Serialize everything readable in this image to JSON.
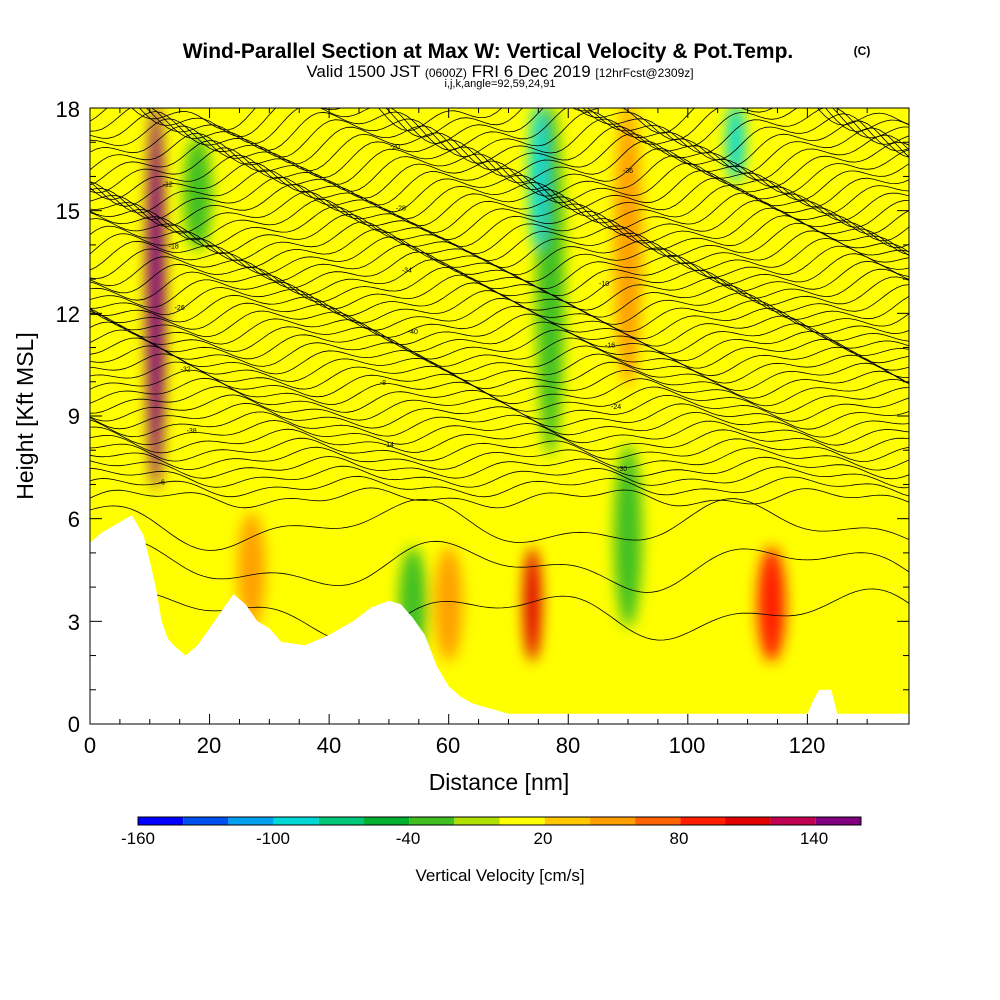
{
  "chart_data": {
    "type": "heatmap",
    "title": "Wind-Parallel Section at Max W: Vertical Velocity & Pot.Temp.",
    "title_mark": "(C)",
    "subtitle": {
      "prefix": "Valid 1500 JST",
      "zulu": "(0600Z)",
      "date": "FRI 6 Dec 2019",
      "forecast": "[12hrFcst@2309z]"
    },
    "indices_line": "i,j,k,angle=92,59,24,91",
    "xlabel": "Distance [nm]",
    "ylabel": "Height [Kft MSL]",
    "xlim": [
      0,
      137
    ],
    "ylim": [
      0,
      18
    ],
    "x_ticks": [
      "0",
      "20",
      "40",
      "60",
      "80",
      "100",
      "120"
    ],
    "y_ticks": [
      "0",
      "3",
      "6",
      "9",
      "12",
      "15",
      "18"
    ],
    "colorbar": {
      "label": "Vertical Velocity [cm/s]",
      "range": [
        -160,
        160
      ],
      "step": 20,
      "tick_labels": [
        "-160",
        "-100",
        "-40",
        "20",
        "80",
        "140"
      ],
      "colors": [
        "#0000ff",
        "#0050f0",
        "#00a0f0",
        "#00d8d8",
        "#00c87a",
        "#00b030",
        "#40c020",
        "#b0e000",
        "#ffff00",
        "#ffc800",
        "#ffa000",
        "#ff6400",
        "#ff1e00",
        "#e00000",
        "#c00050",
        "#800080"
      ]
    },
    "vertical_velocity_cores": [
      {
        "x": 11,
        "z_top": 18,
        "z_bottom": 7,
        "value": 140
      },
      {
        "x": 74,
        "z_top": 5,
        "z_bottom": 2,
        "value": 100
      },
      {
        "x": 114,
        "z_top": 5,
        "z_bottom": 2,
        "value": 80
      },
      {
        "x": 60,
        "z_top": 5,
        "z_bottom": 2,
        "value": 40
      },
      {
        "x": 27,
        "z_top": 6,
        "z_bottom": 3,
        "value": 40
      },
      {
        "x": 90,
        "z_top": 18,
        "z_bottom": 10,
        "value": 40
      },
      {
        "x": 75,
        "z_top": 18,
        "z_bottom": 14,
        "value": -100
      },
      {
        "x": 108,
        "z_top": 18,
        "z_bottom": 16,
        "value": -100
      },
      {
        "x": 77,
        "z_top": 18,
        "z_bottom": 8,
        "value": -40
      },
      {
        "x": 18,
        "z_top": 17,
        "z_bottom": 14,
        "value": -40
      },
      {
        "x": 90,
        "z_top": 8,
        "z_bottom": 3,
        "value": -40
      },
      {
        "x": 54,
        "z_top": 5,
        "z_bottom": 2,
        "value": -40
      }
    ],
    "terrain_height_kft": [
      [
        0,
        5.3
      ],
      [
        2,
        5.6
      ],
      [
        5,
        5.9
      ],
      [
        7,
        6.1
      ],
      [
        9,
        5.5
      ],
      [
        11,
        4
      ],
      [
        12,
        3
      ],
      [
        13,
        2.5
      ],
      [
        14,
        2.3
      ],
      [
        16,
        2
      ],
      [
        18,
        2.3
      ],
      [
        20,
        2.8
      ],
      [
        22,
        3.3
      ],
      [
        24,
        3.8
      ],
      [
        26,
        3.5
      ],
      [
        28,
        3
      ],
      [
        30,
        2.8
      ],
      [
        32,
        2.4
      ],
      [
        36,
        2.3
      ],
      [
        40,
        2.6
      ],
      [
        44,
        3
      ],
      [
        47,
        3.4
      ],
      [
        50,
        3.6
      ],
      [
        52,
        3.5
      ],
      [
        54,
        3.1
      ],
      [
        56,
        2.6
      ],
      [
        58,
        1.7
      ],
      [
        60,
        1.1
      ],
      [
        62,
        0.8
      ],
      [
        64,
        0.6
      ],
      [
        66,
        0.5
      ],
      [
        70,
        0.3
      ],
      [
        80,
        0.3
      ],
      [
        100,
        0.3
      ],
      [
        120,
        0.3
      ],
      [
        121,
        0.7
      ],
      [
        122,
        1
      ],
      [
        124,
        1
      ],
      [
        125,
        0.3
      ],
      [
        137,
        0.3
      ]
    ],
    "theta_contours": {
      "count": 52,
      "labels": [
        "-6",
        "-8",
        "-10",
        "-12",
        "-14",
        "-16",
        "-18",
        "-20",
        "-24",
        "-26",
        "-28",
        "-30",
        "-32",
        "-34",
        "-36",
        "-38",
        "-40"
      ]
    }
  }
}
